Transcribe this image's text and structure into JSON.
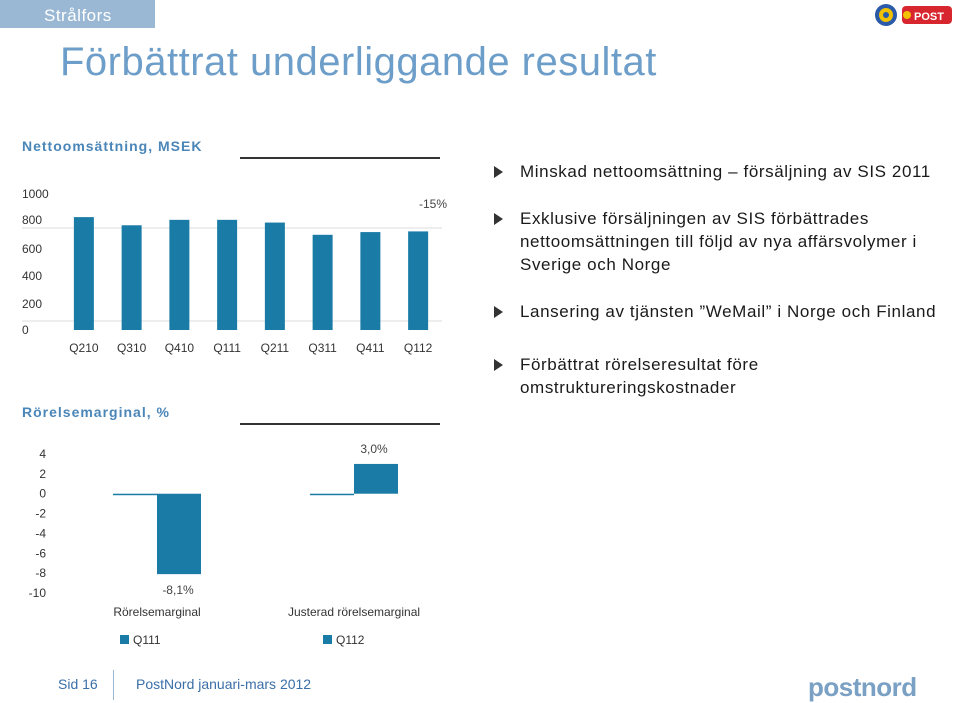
{
  "header": {
    "brand": "Strålfors",
    "title": "Förbättrat underliggande resultat",
    "logo_text": "POST"
  },
  "colors": {
    "bar": "#1a7ca6",
    "accent": "#6d9ec9",
    "bar_q111": "#1a7ca6",
    "bar_q112": "#1a7ca6"
  },
  "chart_data": [
    {
      "type": "bar",
      "title": "Nettoomsättning, MSEK",
      "categories": [
        "Q210",
        "Q310",
        "Q410",
        "Q111",
        "Q211",
        "Q311",
        "Q411",
        "Q112"
      ],
      "values": [
        830,
        770,
        810,
        810,
        790,
        700,
        720,
        725
      ],
      "ylim": [
        0,
        1000
      ],
      "yticks": [
        "1000",
        "800",
        "600",
        "400",
        "200",
        "0"
      ],
      "annotation": "-15%"
    },
    {
      "type": "bar",
      "title": "Rörelsemarginal, %",
      "categories": [
        "Rörelsemarginal",
        "Justerad rörelsemarginal"
      ],
      "series": [
        {
          "name": "Q111",
          "values": [
            -0.1,
            -0.1
          ]
        },
        {
          "name": "Q112",
          "values": [
            -8.1,
            3.0
          ]
        }
      ],
      "ylim": [
        -10,
        4
      ],
      "yticks": [
        "4",
        "2",
        "0",
        "-2",
        "-4",
        "-6",
        "-8",
        "-10"
      ],
      "data_labels": [
        "-8,1%",
        "3,0%"
      ]
    }
  ],
  "bullets": [
    "Minskad nettoomsättning – försäljning av SIS 2011",
    "Exklusive försäljningen av SIS förbättrades nettoomsättningen till följd av nya affärsvolymer i Sverige och Norge",
    "Lansering av tjänsten ”WeMail” i Norge och Finland",
    "Förbättrat rörelseresultat före omstruktureringskostnader"
  ],
  "footer": {
    "page": "Sid 16",
    "text": "PostNord januari-mars 2012",
    "logo": "postnord"
  }
}
